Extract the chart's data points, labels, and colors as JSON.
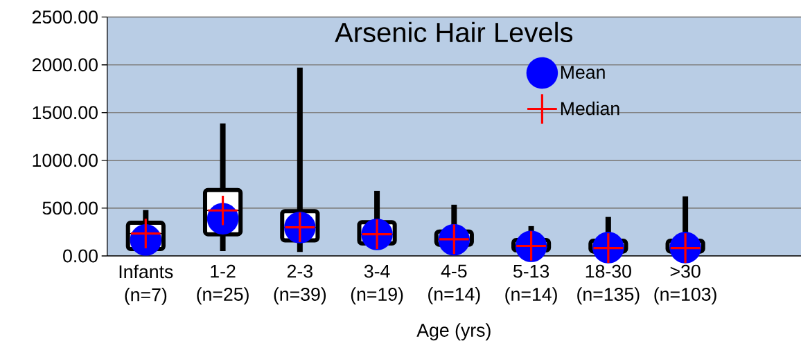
{
  "chart_data": {
    "type": "box",
    "title": "Arsenic Hair Levels",
    "xlabel": "Age (yrs)",
    "categories": [
      "Infants (n=7)",
      "1-2 (n=25)",
      "2-3 (n=39)",
      "3-4 (n=19)",
      "4-5 (n=14)",
      "5-13 (n=14)",
      "18-30 (n=135)",
      ">30 (n=103)",
      null
    ],
    "boxes": [
      {
        "low": 60,
        "q1": 72,
        "median": 234,
        "q3": 348,
        "high": 480
      },
      {
        "low": 50,
        "q1": 227,
        "median": 476,
        "q3": 690,
        "high": 1386
      },
      {
        "low": 41,
        "q1": 162,
        "median": 299,
        "q3": 469,
        "high": 1971
      },
      {
        "low": 90,
        "q1": 130,
        "median": 227,
        "q3": 353,
        "high": 681
      },
      {
        "low": 60,
        "q1": 118,
        "median": 174,
        "q3": 256,
        "high": 536
      },
      {
        "low": 30,
        "q1": 58,
        "median": 105,
        "q3": 167,
        "high": 312
      },
      {
        "low": 20,
        "q1": 46,
        "median": 82,
        "q3": 159,
        "high": 408
      },
      {
        "low": 20,
        "q1": 46,
        "median": 82,
        "q3": 159,
        "high": 623
      },
      null
    ],
    "series": [
      {
        "name": "Mean",
        "type": "scatter",
        "marker": "circle",
        "color": "#0000ff",
        "values": [
          167,
          389,
          297,
          225,
          169,
          100,
          87,
          87,
          null
        ]
      },
      {
        "name": "Median",
        "type": "scatter",
        "marker": "cross",
        "color": "#ff0000",
        "values": [
          234,
          476,
          299,
          227,
          174,
          105,
          82,
          82,
          null
        ]
      }
    ],
    "ylim": [
      0,
      2500
    ],
    "yticks": [
      {
        "value": 0,
        "label": "0.00"
      },
      {
        "value": 500,
        "label": "500.00"
      },
      {
        "value": 1000,
        "label": "1000.00"
      },
      {
        "value": 1500,
        "label": "1500.00"
      },
      {
        "value": 2000,
        "label": "2000.00"
      },
      {
        "value": 2500,
        "label": "2500.00"
      }
    ],
    "grid": "y",
    "legend": "top right"
  }
}
